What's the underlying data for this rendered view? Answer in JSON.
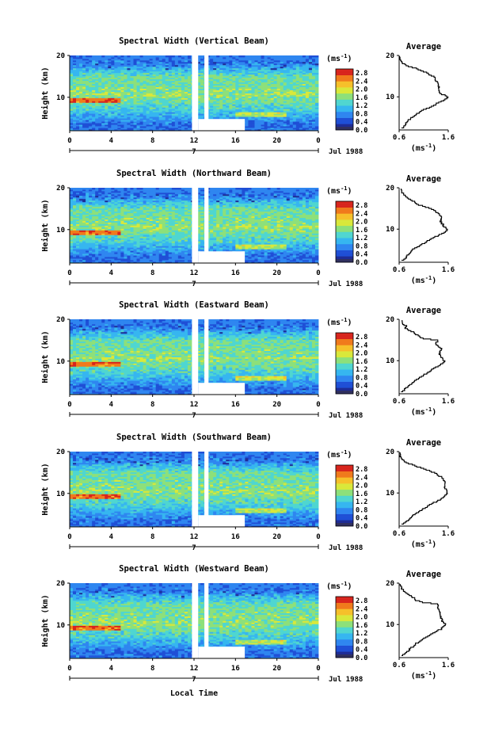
{
  "chart_data": {
    "type": "heatmap",
    "xlabel": "Local Time",
    "x_ticks": [
      "0",
      "4",
      "8",
      "12",
      "16",
      "20",
      "0"
    ],
    "xlim": [
      0,
      24
    ],
    "date_day": "7",
    "date_label": "Jul 1988",
    "ylabel": "Height (km)",
    "y_ticks": [
      "10",
      "20"
    ],
    "ylim": [
      2,
      20
    ],
    "colorbar": {
      "unit_base": "(ms",
      "unit_exp": "-1",
      "unit_close": ")",
      "ticks": [
        "0.0",
        "0.4",
        "0.8",
        "1.2",
        "1.6",
        "2.0",
        "2.4",
        "2.8"
      ],
      "range": [
        0,
        3.0
      ],
      "colors": [
        "#303060",
        "#1e2c96",
        "#1f4fd6",
        "#2f86f0",
        "#36b6f0",
        "#4fd6d0",
        "#8de07a",
        "#d9e83a",
        "#f6c02a",
        "#f07a1c",
        "#d8241c"
      ]
    },
    "data_gaps": [
      {
        "x_range": [
          11.8,
          12.4
        ],
        "y_range": [
          2,
          20
        ]
      },
      {
        "x_range": [
          13.0,
          13.4
        ],
        "y_range": [
          2,
          20
        ]
      },
      {
        "x_range": [
          12.4,
          16.9
        ],
        "y_range": [
          2,
          4.8
        ]
      }
    ],
    "average_profile": {
      "title": "Average",
      "xlabel_base": "(ms",
      "xlabel_exp": "-1",
      "xlabel_close": ")",
      "x_ticks": [
        "0.6",
        "1.6"
      ],
      "xlim": [
        0.6,
        1.6
      ],
      "y_ticks": [
        "10",
        "20"
      ],
      "ylim": [
        2,
        20
      ]
    },
    "panels": [
      {
        "title": "Spectral Width (Vertical Beam)",
        "profile": [
          [
            2.5,
            0.66
          ],
          [
            3,
            0.7
          ],
          [
            4,
            0.76
          ],
          [
            5,
            0.84
          ],
          [
            6,
            0.95
          ],
          [
            7,
            1.1
          ],
          [
            8,
            1.3
          ],
          [
            9,
            1.45
          ],
          [
            10,
            1.6
          ],
          [
            10.5,
            1.52
          ],
          [
            11,
            1.42
          ],
          [
            12,
            1.42
          ],
          [
            13,
            1.4
          ],
          [
            14,
            1.36
          ],
          [
            15,
            1.3
          ],
          [
            16,
            1.15
          ],
          [
            17,
            0.95
          ],
          [
            17.5,
            0.8
          ],
          [
            18,
            0.7
          ],
          [
            18.5,
            0.66
          ],
          [
            19,
            0.62
          ],
          [
            19.8,
            0.61
          ]
        ]
      },
      {
        "title": "Spectral Width (Northward Beam)",
        "profile": [
          [
            2.5,
            0.66
          ],
          [
            3,
            0.72
          ],
          [
            4,
            0.78
          ],
          [
            5,
            0.86
          ],
          [
            6,
            1.0
          ],
          [
            7,
            1.15
          ],
          [
            8,
            1.3
          ],
          [
            9,
            1.48
          ],
          [
            10,
            1.58
          ],
          [
            11,
            1.5
          ],
          [
            12,
            1.45
          ],
          [
            13,
            1.45
          ],
          [
            14,
            1.4
          ],
          [
            15,
            1.25
          ],
          [
            16,
            1.0
          ],
          [
            17,
            0.88
          ],
          [
            17.5,
            0.8
          ],
          [
            18,
            0.72
          ],
          [
            19,
            0.66
          ],
          [
            19.8,
            0.64
          ]
        ]
      },
      {
        "title": "Spectral Width (Eastward Beam)",
        "profile": [
          [
            2.5,
            0.65
          ],
          [
            3,
            0.7
          ],
          [
            4,
            0.8
          ],
          [
            5,
            0.9
          ],
          [
            6,
            1.0
          ],
          [
            7,
            1.15
          ],
          [
            8,
            1.28
          ],
          [
            9,
            1.42
          ],
          [
            10,
            1.52
          ],
          [
            11,
            1.45
          ],
          [
            12,
            1.42
          ],
          [
            13,
            1.48
          ],
          [
            14,
            1.35
          ],
          [
            15,
            1.38
          ],
          [
            15.5,
            1.1
          ],
          [
            16,
            1.0
          ],
          [
            17,
            0.9
          ],
          [
            17.5,
            0.8
          ],
          [
            18,
            0.7
          ],
          [
            18.5,
            0.75
          ],
          [
            19,
            0.66
          ],
          [
            19.8,
            0.66
          ]
        ]
      },
      {
        "title": "Spectral Width (Southward Beam)",
        "profile": [
          [
            2.5,
            0.66
          ],
          [
            3,
            0.74
          ],
          [
            4,
            0.82
          ],
          [
            5,
            0.92
          ],
          [
            6,
            1.05
          ],
          [
            7,
            1.2
          ],
          [
            8,
            1.35
          ],
          [
            9,
            1.5
          ],
          [
            10,
            1.6
          ],
          [
            11,
            1.55
          ],
          [
            12,
            1.52
          ],
          [
            13,
            1.52
          ],
          [
            14,
            1.45
          ],
          [
            15,
            1.32
          ],
          [
            16,
            1.1
          ],
          [
            17,
            0.85
          ],
          [
            17.5,
            0.75
          ],
          [
            18,
            0.68
          ],
          [
            18.5,
            0.64
          ],
          [
            19,
            0.62
          ],
          [
            19.8,
            0.62
          ]
        ]
      },
      {
        "title": "Spectral Width (Westward Beam)",
        "profile": [
          [
            2.5,
            0.66
          ],
          [
            3,
            0.72
          ],
          [
            4,
            0.8
          ],
          [
            5,
            0.9
          ],
          [
            6,
            1.0
          ],
          [
            7,
            1.15
          ],
          [
            8,
            1.28
          ],
          [
            9,
            1.45
          ],
          [
            10,
            1.55
          ],
          [
            11,
            1.48
          ],
          [
            12,
            1.45
          ],
          [
            13,
            1.42
          ],
          [
            14,
            1.4
          ],
          [
            15,
            1.38
          ],
          [
            15.5,
            1.08
          ],
          [
            16,
            0.95
          ],
          [
            17,
            0.85
          ],
          [
            17.5,
            0.78
          ],
          [
            18,
            0.7
          ],
          [
            18.5,
            0.68
          ],
          [
            19,
            0.64
          ],
          [
            19.8,
            0.62
          ]
        ]
      }
    ]
  }
}
